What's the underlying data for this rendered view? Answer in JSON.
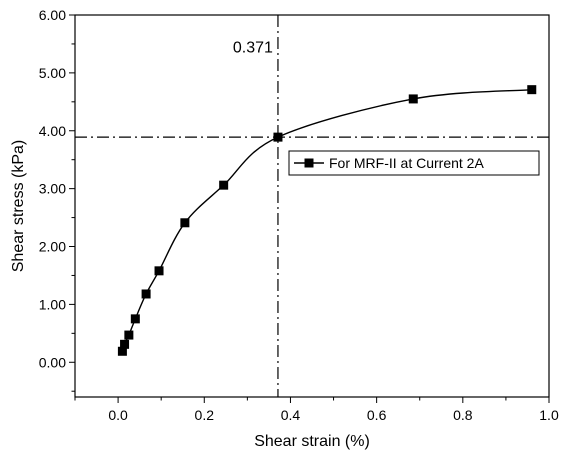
{
  "chart_data": {
    "type": "line",
    "title": "",
    "xlabel": "Shear strain (%)",
    "ylabel": "Shear stress (kPa)",
    "xlim": [
      -0.1,
      1.0
    ],
    "ylim": [
      -0.6,
      6.0
    ],
    "x_ticks": [
      0.0,
      0.2,
      0.4,
      0.6,
      0.8,
      1.0
    ],
    "x_tick_labels": [
      "0.0",
      "0.2",
      "0.4",
      "0.6",
      "0.8",
      "1.0"
    ],
    "y_ticks": [
      0.0,
      1.0,
      2.0,
      3.0,
      4.0,
      5.0,
      6.0
    ],
    "y_tick_labels": [
      "0.00",
      "1.00",
      "2.00",
      "3.00",
      "4.00",
      "5.00",
      "6.00"
    ],
    "grid": false,
    "legend_position": "right",
    "series": [
      {
        "name": "For MRF-II at Current 2A",
        "color": "#000000",
        "marker": "square",
        "x": [
          0.01,
          0.015,
          0.025,
          0.04,
          0.065,
          0.095,
          0.155,
          0.245,
          0.371,
          0.685,
          0.96
        ],
        "y": [
          0.19,
          0.31,
          0.47,
          0.75,
          1.18,
          1.58,
          2.41,
          3.06,
          3.89,
          4.55,
          4.71
        ]
      }
    ],
    "reference_lines": {
      "vertical_x": 0.371,
      "horizontal_y": 3.89,
      "style": "dash-dot"
    },
    "annotations": [
      {
        "text": "0.371",
        "x": 0.371,
        "y": 5.35
      }
    ]
  }
}
